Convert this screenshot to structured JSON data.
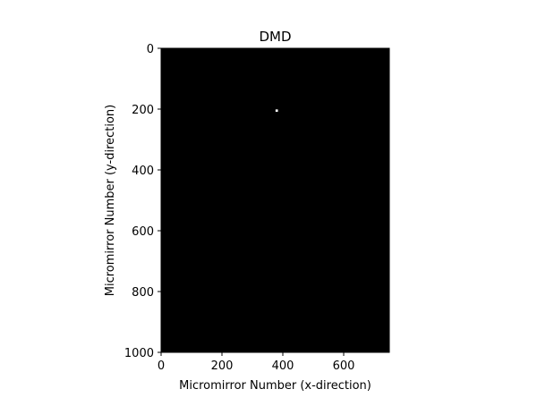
{
  "chart_data": {
    "type": "heatmap",
    "title": "DMD",
    "xlabel": "Micromirror Number (x-direction)",
    "ylabel": "Micromirror Number (y-direction)",
    "xlim": [
      0,
      750
    ],
    "ylim": [
      1000,
      0
    ],
    "y_axis_inverted": true,
    "x_ticks": [
      0,
      200,
      400,
      600
    ],
    "y_ticks": [
      0,
      200,
      400,
      600,
      800,
      1000
    ],
    "grid": false,
    "colormap": "gray",
    "background_value": 0,
    "bright_spots": [
      {
        "x": [
          376,
          384
        ],
        "y": [
          201,
          209
        ],
        "value": 1
      }
    ],
    "colors": {
      "background": "#000000",
      "spot": "#ffffff",
      "axes": "#000000"
    }
  }
}
